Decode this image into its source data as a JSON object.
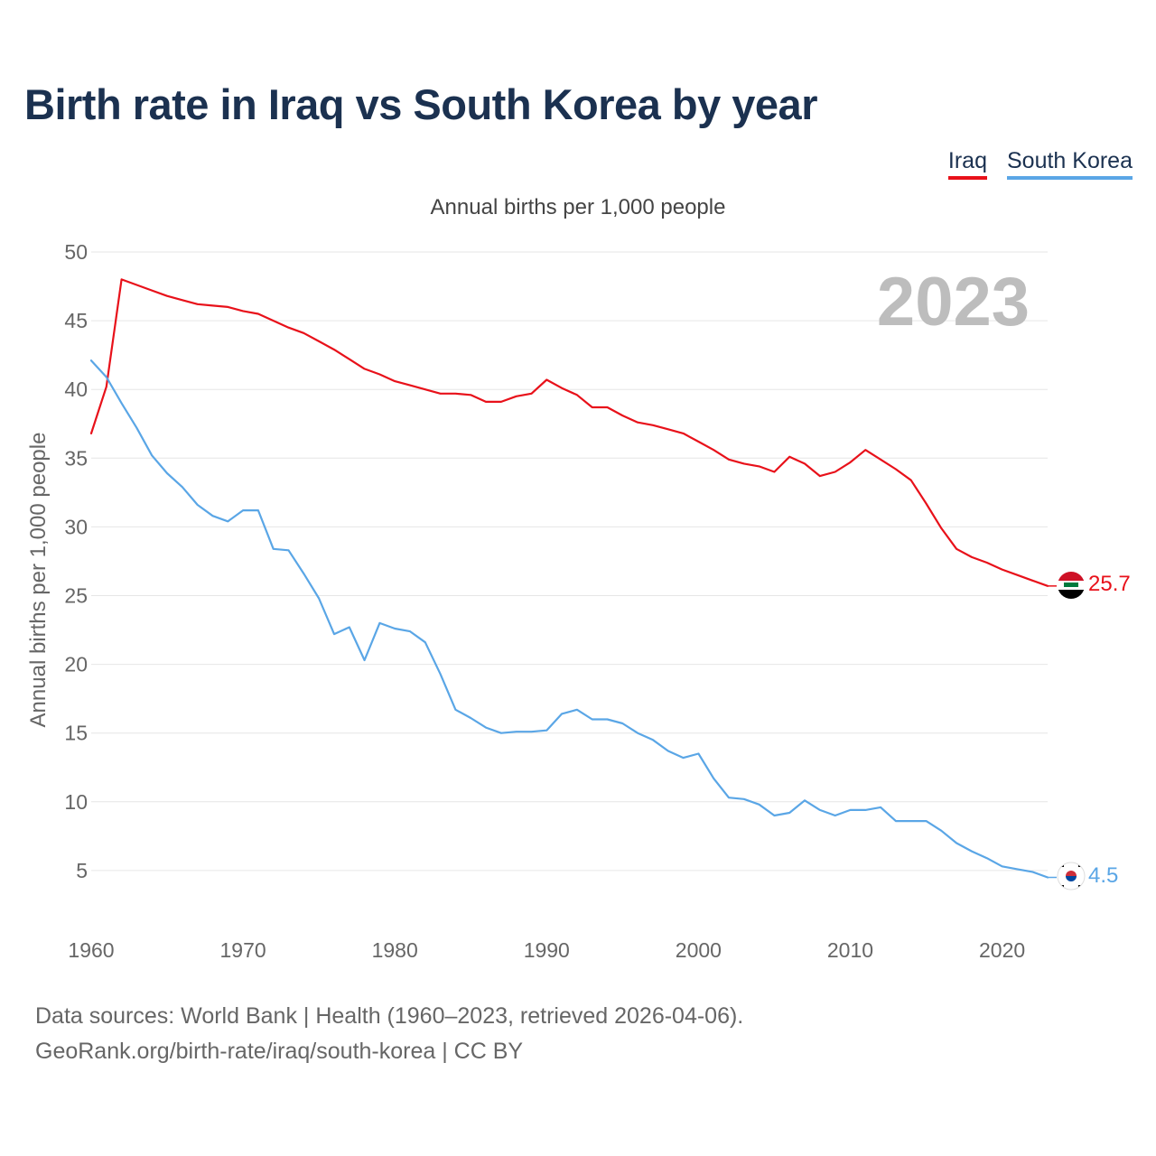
{
  "title": "Birth rate in Iraq vs South Korea by year",
  "legend": [
    {
      "label": "Iraq",
      "color": "#e8111a"
    },
    {
      "label": "South Korea",
      "color": "#5aa6e6"
    }
  ],
  "subtitle": "Annual births per 1,000 people",
  "footer": {
    "line1": "Data sources: World Bank | Health (1960–2023, retrieved 2026-04-06).",
    "line2": "GeoRank.org/birth-rate/iraq/south-korea | CC BY"
  },
  "chart_data": {
    "type": "line",
    "title": "Birth rate in Iraq vs South Korea by year",
    "ylabel": "Annual births per 1,000 people",
    "xlabel": "",
    "year_label": "2023",
    "xlim": [
      1960,
      2023
    ],
    "ylim": [
      0,
      50
    ],
    "yticks": [
      5,
      10,
      15,
      20,
      25,
      30,
      35,
      40,
      45,
      50
    ],
    "xticks": [
      1960,
      1970,
      1980,
      1990,
      2000,
      2010,
      2020
    ],
    "grid": true,
    "legend_position": "top-right",
    "x_start": 1960,
    "series": [
      {
        "name": "Iraq",
        "color": "#e8111a",
        "end_label": "25.7",
        "flag": "iraq-flag-icon",
        "values": [
          36.8,
          40.2,
          48.0,
          47.6,
          47.2,
          46.8,
          46.5,
          46.2,
          46.1,
          46.0,
          45.7,
          45.5,
          45.0,
          44.5,
          44.1,
          43.5,
          42.9,
          42.2,
          41.5,
          41.1,
          40.6,
          40.3,
          40.0,
          39.7,
          39.7,
          39.6,
          39.1,
          39.1,
          39.5,
          39.7,
          40.7,
          40.1,
          39.6,
          38.7,
          38.7,
          38.1,
          37.6,
          37.4,
          37.1,
          36.8,
          36.2,
          35.6,
          34.9,
          34.6,
          34.4,
          34.0,
          35.1,
          34.6,
          33.7,
          34.0,
          34.7,
          35.6,
          34.9,
          34.2,
          33.4,
          31.7,
          29.9,
          28.4,
          27.8,
          27.4,
          26.9,
          26.5,
          26.1,
          25.7
        ]
      },
      {
        "name": "South Korea",
        "color": "#5aa6e6",
        "end_label": "4.5",
        "flag": "south-korea-flag-icon",
        "values": [
          42.1,
          40.9,
          39.0,
          37.2,
          35.2,
          33.9,
          32.9,
          31.6,
          30.8,
          30.4,
          31.2,
          31.2,
          28.4,
          28.3,
          26.6,
          24.8,
          22.2,
          22.7,
          20.3,
          23.0,
          22.6,
          22.4,
          21.6,
          19.3,
          16.7,
          16.1,
          15.4,
          15.0,
          15.1,
          15.1,
          15.2,
          16.4,
          16.7,
          16.0,
          16.0,
          15.7,
          15.0,
          14.5,
          13.7,
          13.2,
          13.5,
          11.7,
          10.3,
          10.2,
          9.8,
          9.0,
          9.2,
          10.1,
          9.4,
          9.0,
          9.4,
          9.4,
          9.6,
          8.6,
          8.6,
          8.6,
          7.9,
          7.0,
          6.4,
          5.9,
          5.3,
          5.1,
          4.9,
          4.5
        ]
      }
    ]
  }
}
